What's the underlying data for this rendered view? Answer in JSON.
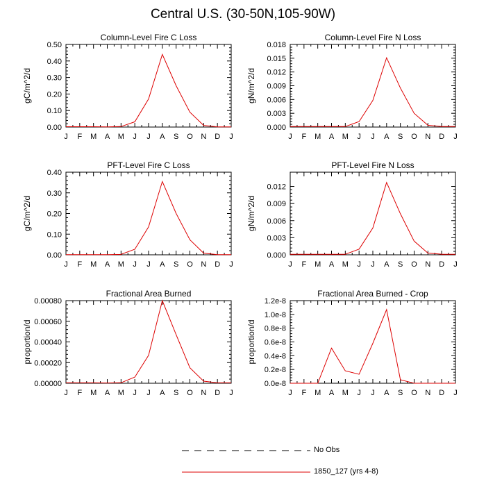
{
  "page_title": "Central U.S. (30-50N,105-90W)",
  "legend": {
    "entries": [
      {
        "label": "No Obs",
        "color": "#000000",
        "style": "dashed"
      },
      {
        "label": "1850_127 (yrs 4-8)",
        "color": "#dd0000",
        "style": "solid"
      }
    ]
  },
  "chart_data": [
    {
      "type": "line",
      "title": "Column-Level Fire C Loss",
      "ylabel": "gC/m^2/d",
      "x": [
        "J",
        "F",
        "M",
        "A",
        "M",
        "J",
        "J",
        "A",
        "S",
        "O",
        "N",
        "D",
        "J"
      ],
      "ylim": [
        0,
        0.5
      ],
      "yticks": [
        "0.00",
        "0.10",
        "0.20",
        "0.30",
        "0.40",
        "0.50"
      ],
      "series": [
        {
          "name": "1850_127 (yrs 4-8)",
          "color": "#dd0000",
          "values": [
            0.002,
            0.002,
            0.002,
            0.001,
            0.003,
            0.032,
            0.17,
            0.44,
            0.25,
            0.09,
            0.01,
            0.001,
            0.001
          ]
        }
      ]
    },
    {
      "type": "line",
      "title": "Column-Level Fire N Loss",
      "ylabel": "gN/m^2/d",
      "x": [
        "J",
        "F",
        "M",
        "A",
        "M",
        "J",
        "J",
        "A",
        "S",
        "O",
        "N",
        "D",
        "J"
      ],
      "ylim": [
        0,
        0.018
      ],
      "yticks": [
        "0.000",
        "0.003",
        "0.006",
        "0.009",
        "0.012",
        "0.015",
        "0.018"
      ],
      "series": [
        {
          "name": "1850_127 (yrs 4-8)",
          "color": "#dd0000",
          "values": [
            0.0001,
            0.0001,
            0.0001,
            0.0001,
            0.0001,
            0.0012,
            0.0058,
            0.0151,
            0.0085,
            0.003,
            0.0004,
            0.0001,
            0.0001
          ]
        }
      ]
    },
    {
      "type": "line",
      "title": "PFT-Level Fire C Loss",
      "ylabel": "gC/m^2/d",
      "x": [
        "J",
        "F",
        "M",
        "A",
        "M",
        "J",
        "J",
        "A",
        "S",
        "O",
        "N",
        "D",
        "J"
      ],
      "ylim": [
        0,
        0.4
      ],
      "yticks": [
        "0.00",
        "0.10",
        "0.20",
        "0.30",
        "0.40"
      ],
      "series": [
        {
          "name": "1850_127 (yrs 4-8)",
          "color": "#dd0000",
          "values": [
            0.001,
            0.001,
            0.001,
            0.001,
            0.002,
            0.027,
            0.135,
            0.355,
            0.2,
            0.073,
            0.008,
            0.001,
            0.001
          ]
        }
      ]
    },
    {
      "type": "line",
      "title": "PFT-Level Fire N Loss",
      "ylabel": "gN/m^2/d",
      "x": [
        "J",
        "F",
        "M",
        "A",
        "M",
        "J",
        "J",
        "A",
        "S",
        "O",
        "N",
        "D",
        "J"
      ],
      "ylim": [
        0,
        0.0145
      ],
      "yticks": [
        "0.000",
        "0.003",
        "0.006",
        "0.009",
        "0.012"
      ],
      "ytick_values": [
        0,
        0.003,
        0.006,
        0.009,
        0.012
      ],
      "series": [
        {
          "name": "1850_127 (yrs 4-8)",
          "color": "#dd0000",
          "values": [
            0.0001,
            0.0001,
            0.0001,
            0.0001,
            0.0001,
            0.001,
            0.0047,
            0.0127,
            0.0072,
            0.0024,
            0.0003,
            0.0001,
            0.0001
          ]
        }
      ]
    },
    {
      "type": "line",
      "title": "Fractional Area Burned",
      "ylabel": "proportion/d",
      "x": [
        "J",
        "F",
        "M",
        "A",
        "M",
        "J",
        "J",
        "A",
        "S",
        "O",
        "N",
        "D",
        "J"
      ],
      "ylim": [
        0,
        0.0008
      ],
      "yticks": [
        "0.00000",
        "0.00020",
        "0.00040",
        "0.00060",
        "0.00080"
      ],
      "series": [
        {
          "name": "1850_127 (yrs 4-8)",
          "color": "#dd0000",
          "values": [
            4e-06,
            4e-06,
            4e-06,
            3e-06,
            5e-06,
            6e-05,
            0.00027,
            0.0008,
            0.00047,
            0.00015,
            2e-05,
            4e-06,
            4e-06
          ]
        }
      ]
    },
    {
      "type": "line",
      "title": "Fractional Area Burned - Crop",
      "ylabel": "proportion/d",
      "x": [
        "J",
        "F",
        "M",
        "A",
        "M",
        "J",
        "J",
        "A",
        "S",
        "O",
        "N",
        "D",
        "J"
      ],
      "ylim": [
        0,
        1.2e-08
      ],
      "yticks": [
        "0.0e-8",
        "0.2e-8",
        "0.4e-8",
        "0.6e-8",
        "0.8e-8",
        "1.0e-8",
        "1.2e-8"
      ],
      "series": [
        {
          "name": "1850_127 (yrs 4-8)",
          "color": "#dd0000",
          "values": [
            0,
            0,
            0,
            5.1e-09,
            1.8e-09,
            1.3e-09,
            5.8e-09,
            1.07e-08,
            5e-10,
            0,
            0,
            0,
            0
          ]
        }
      ]
    }
  ]
}
